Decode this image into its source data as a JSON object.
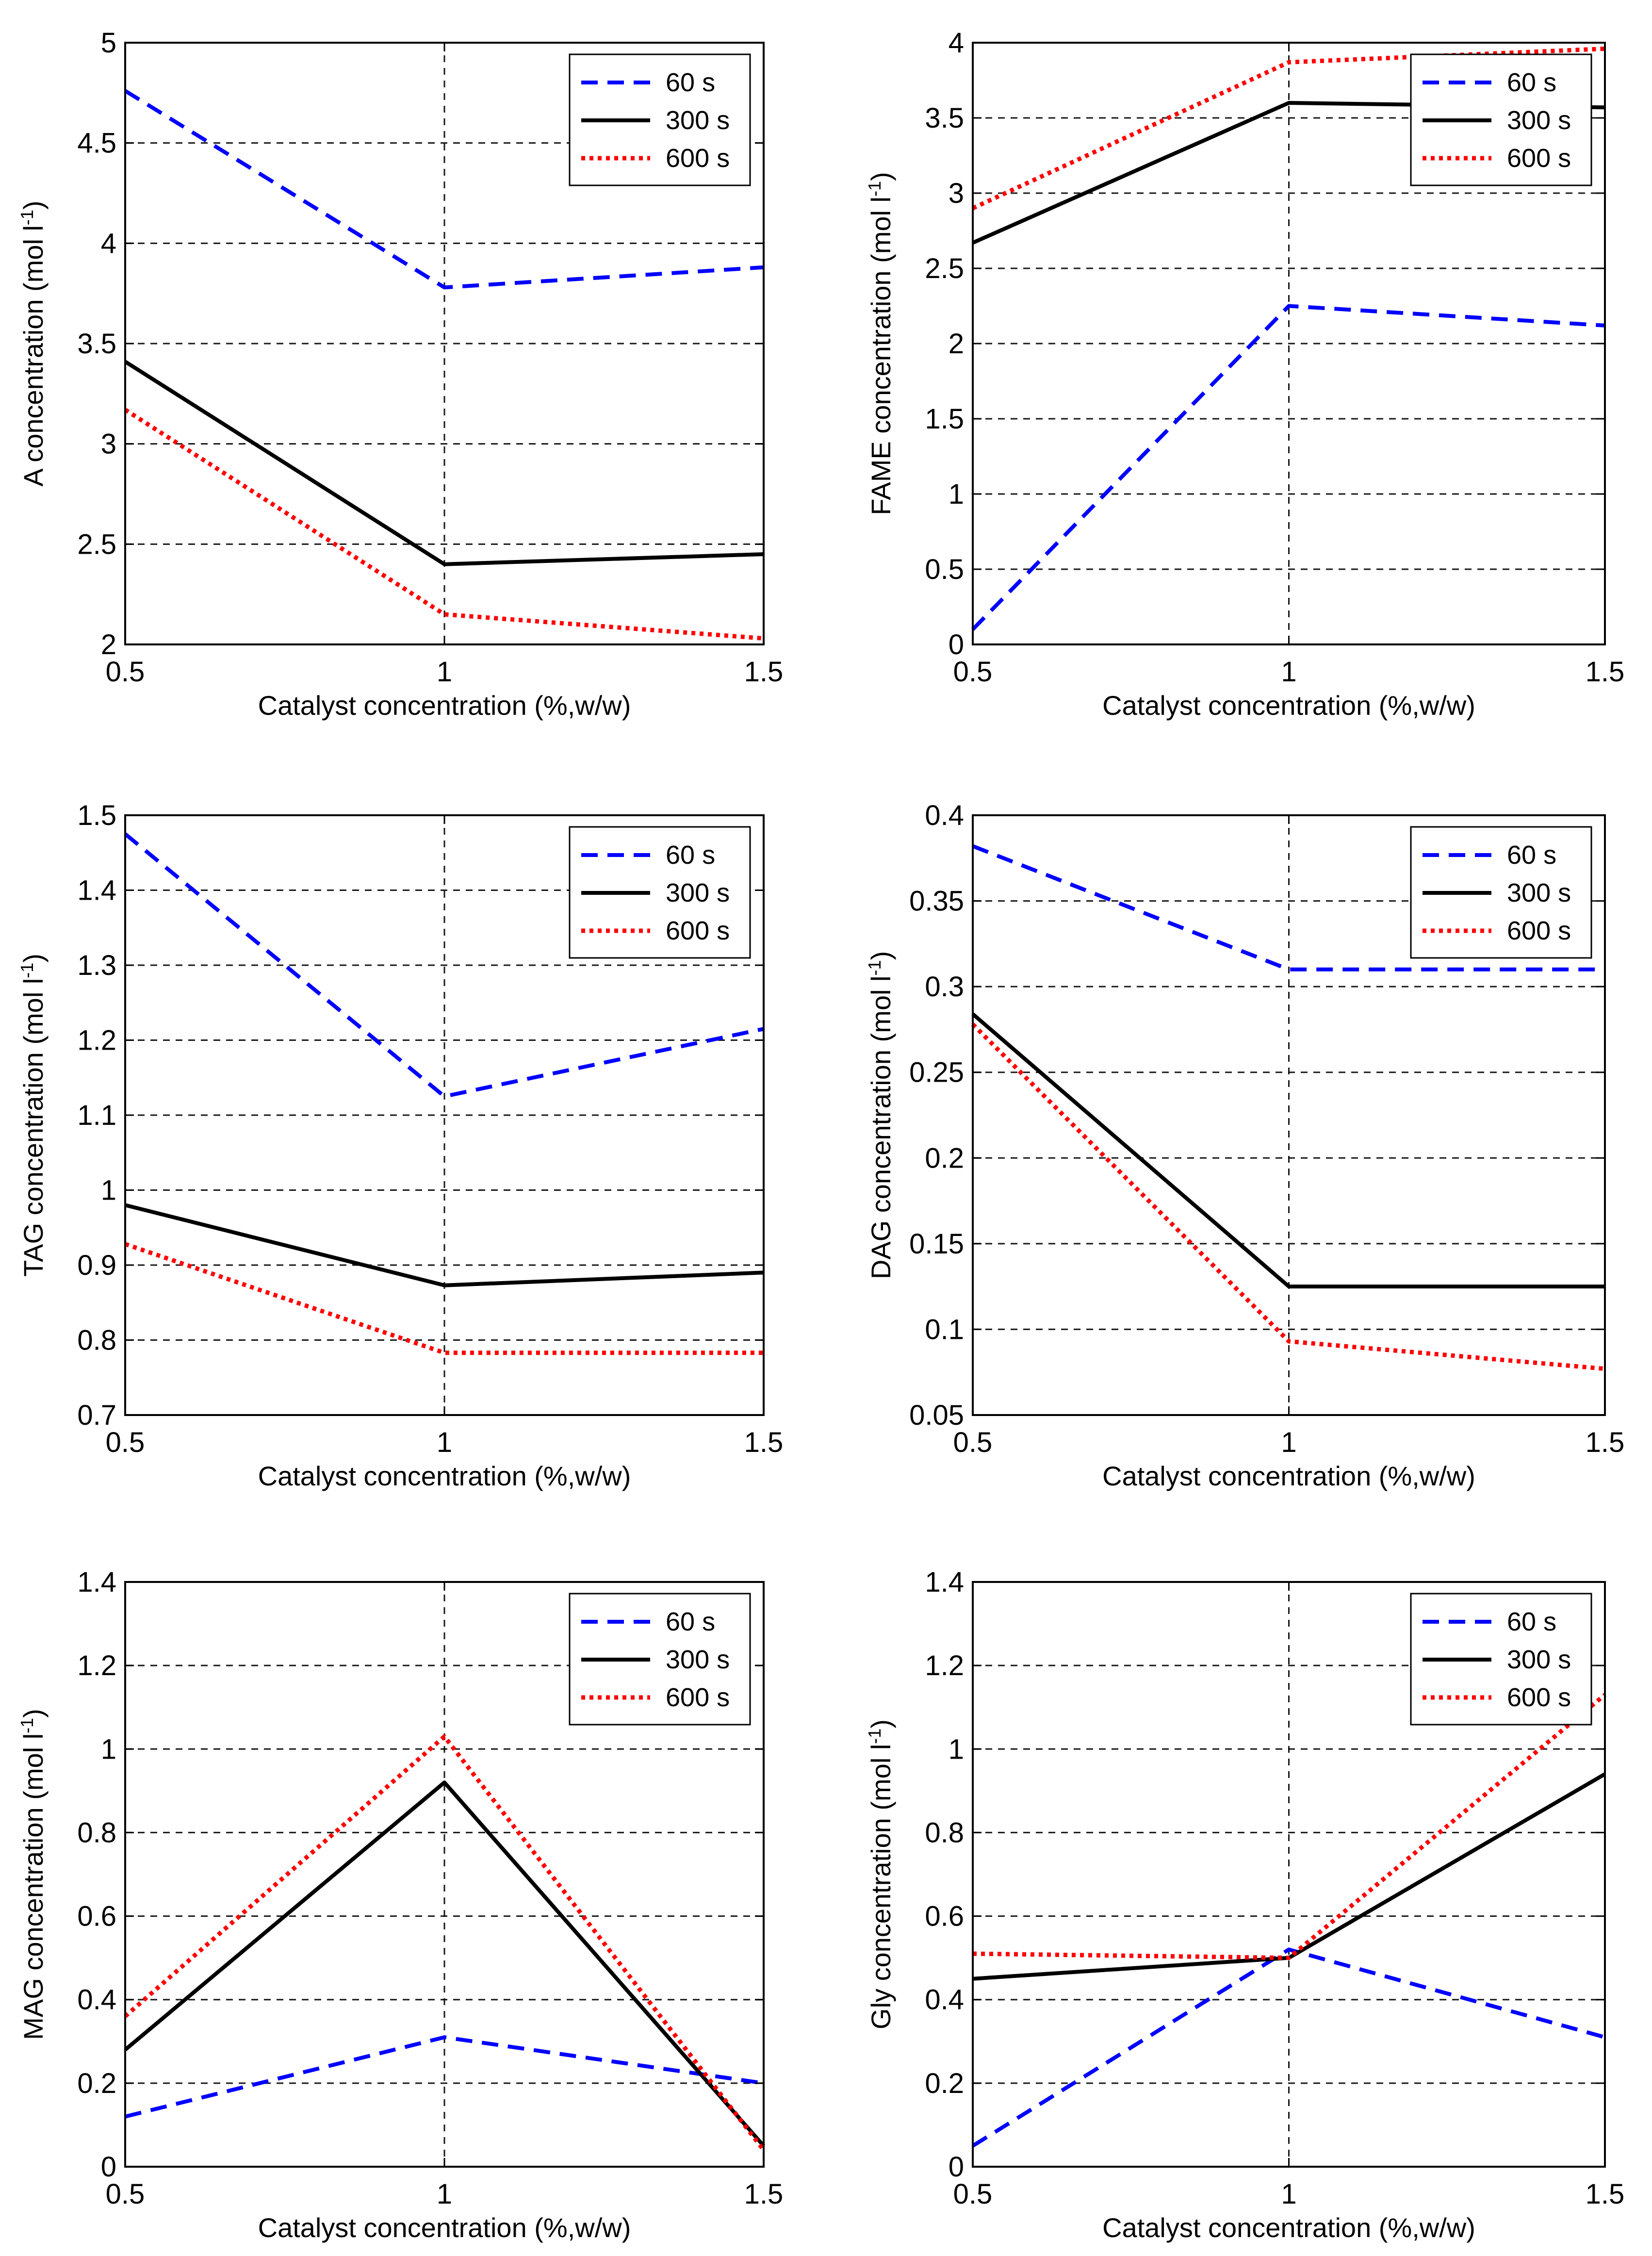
{
  "chart_data": [
    {
      "type": "line",
      "ylabel_main": "A  concentration (mol l",
      "ylabel_sup": "-1",
      "ylabel_tail": ")",
      "xlabel": "Catalyst concentration (%,w/w)",
      "x": [
        0.5,
        1,
        1.5
      ],
      "xticks": [
        "0.5",
        "1",
        "1.5"
      ],
      "xlim": [
        0.5,
        1.5
      ],
      "ylim": [
        2,
        5
      ],
      "yticks": [
        2,
        2.5,
        3,
        3.5,
        4,
        4.5,
        5
      ],
      "ytick_labels": [
        "2",
        "2.5",
        "3",
        "3.5",
        "4",
        "4.5",
        "5"
      ],
      "series": [
        {
          "name": "60 s",
          "values": [
            4.76,
            3.78,
            3.88
          ]
        },
        {
          "name": "300 s",
          "values": [
            3.41,
            2.4,
            2.45
          ]
        },
        {
          "name": "600 s",
          "values": [
            3.17,
            2.15,
            2.03
          ]
        }
      ],
      "legend": "top-right",
      "grid": true
    },
    {
      "type": "line",
      "ylabel_main": "FAME  concentration (mol l",
      "ylabel_sup": "-1",
      "ylabel_tail": ")",
      "xlabel": "Catalyst concentration (%,w/w)",
      "x": [
        0.5,
        1,
        1.5
      ],
      "xticks": [
        "0.5",
        "1",
        "1.5"
      ],
      "xlim": [
        0.5,
        1.5
      ],
      "ylim": [
        0,
        4
      ],
      "yticks": [
        0,
        0.5,
        1,
        1.5,
        2,
        2.5,
        3,
        3.5,
        4
      ],
      "ytick_labels": [
        "0",
        "0.5",
        "1",
        "1.5",
        "2",
        "2.5",
        "3",
        "3.5",
        "4"
      ],
      "series": [
        {
          "name": "60 s",
          "values": [
            0.1,
            2.25,
            2.12
          ]
        },
        {
          "name": "300 s",
          "values": [
            2.67,
            3.6,
            3.57
          ]
        },
        {
          "name": "600 s",
          "values": [
            2.9,
            3.87,
            3.96
          ]
        }
      ],
      "legend": "top-right",
      "grid": true
    },
    {
      "type": "line",
      "ylabel_main": "TAG  concentration (mol l",
      "ylabel_sup": "-1",
      "ylabel_tail": ")",
      "xlabel": "Catalyst concentration (%,w/w)",
      "x": [
        0.5,
        1,
        1.5
      ],
      "xticks": [
        "0.5",
        "1",
        "1.5"
      ],
      "xlim": [
        0.5,
        1.5
      ],
      "ylim": [
        0.7,
        1.5
      ],
      "yticks": [
        0.7,
        0.8,
        0.9,
        1.0,
        1.1,
        1.2,
        1.3,
        1.4,
        1.5
      ],
      "ytick_labels": [
        "0.7",
        "0.8",
        "0.9",
        "1",
        "1.1",
        "1.2",
        "1.3",
        "1.4",
        "1.5"
      ],
      "series": [
        {
          "name": "60 s",
          "values": [
            1.475,
            1.125,
            1.215
          ]
        },
        {
          "name": "300 s",
          "values": [
            0.98,
            0.873,
            0.89
          ]
        },
        {
          "name": "600 s",
          "values": [
            0.928,
            0.783,
            0.783
          ]
        }
      ],
      "legend": "top-right",
      "grid": true
    },
    {
      "type": "line",
      "ylabel_main": "DAG  concentration (mol l",
      "ylabel_sup": "-1",
      "ylabel_tail": ")",
      "xlabel": "Catalyst concentration (%,w/w)",
      "x": [
        0.5,
        1,
        1.5
      ],
      "xticks": [
        "0.5",
        "1",
        "1.5"
      ],
      "xlim": [
        0.5,
        1.5
      ],
      "ylim": [
        0.05,
        0.4
      ],
      "yticks": [
        0.05,
        0.1,
        0.15,
        0.2,
        0.25,
        0.3,
        0.35,
        0.4
      ],
      "ytick_labels": [
        "0.05",
        "0.1",
        "0.15",
        "0.2",
        "0.25",
        "0.3",
        "0.35",
        "0.4"
      ],
      "series": [
        {
          "name": "60 s",
          "values": [
            0.382,
            0.31,
            0.31
          ]
        },
        {
          "name": "300 s",
          "values": [
            0.284,
            0.125,
            0.125
          ]
        },
        {
          "name": "600 s",
          "values": [
            0.278,
            0.093,
            0.077
          ]
        }
      ],
      "legend": "top-right",
      "grid": true
    },
    {
      "type": "line",
      "ylabel_main": "MAG  concentration (mol l",
      "ylabel_sup": "-1",
      "ylabel_tail": ")",
      "xlabel": "Catalyst concentration (%,w/w)",
      "x": [
        0.5,
        1,
        1.5
      ],
      "xticks": [
        "0.5",
        "1",
        "1.5"
      ],
      "xlim": [
        0.5,
        1.5
      ],
      "ylim": [
        0,
        1.4
      ],
      "yticks": [
        0,
        0.2,
        0.4,
        0.6,
        0.8,
        1.0,
        1.2,
        1.4
      ],
      "ytick_labels": [
        "0",
        "0.2",
        "0.4",
        "0.6",
        "0.8",
        "1",
        "1.2",
        "1.4"
      ],
      "series": [
        {
          "name": "60 s",
          "values": [
            0.12,
            0.31,
            0.2
          ]
        },
        {
          "name": "300 s",
          "values": [
            0.28,
            0.92,
            0.05
          ]
        },
        {
          "name": "600 s",
          "values": [
            0.36,
            1.03,
            0.04
          ]
        }
      ],
      "legend": "top-right",
      "grid": true
    },
    {
      "type": "line",
      "ylabel_main": "Gly  concentration (mol l",
      "ylabel_sup": "-1",
      "ylabel_tail": ")",
      "xlabel": "Catalyst concentration (%,w/w)",
      "x": [
        0.5,
        1,
        1.5
      ],
      "xticks": [
        "0.5",
        "1",
        "1.5"
      ],
      "xlim": [
        0.5,
        1.5
      ],
      "ylim": [
        0,
        1.4
      ],
      "yticks": [
        0,
        0.2,
        0.4,
        0.6,
        0.8,
        1.0,
        1.2,
        1.4
      ],
      "ytick_labels": [
        "0",
        "0.2",
        "0.4",
        "0.6",
        "0.8",
        "1",
        "1.2",
        "1.4"
      ],
      "series": [
        {
          "name": "60 s",
          "values": [
            0.05,
            0.52,
            0.31
          ]
        },
        {
          "name": "300 s",
          "values": [
            0.45,
            0.5,
            0.94
          ]
        },
        {
          "name": "600 s",
          "values": [
            0.51,
            0.5,
            1.13
          ]
        }
      ],
      "legend": "top-right",
      "grid": true
    }
  ],
  "series_styles": [
    {
      "name": "60 s",
      "color": "#0000ff",
      "dash": "dashed"
    },
    {
      "name": "300 s",
      "color": "#000000",
      "dash": "solid"
    },
    {
      "name": "600 s",
      "color": "#ff0000",
      "dash": "dotted"
    }
  ]
}
